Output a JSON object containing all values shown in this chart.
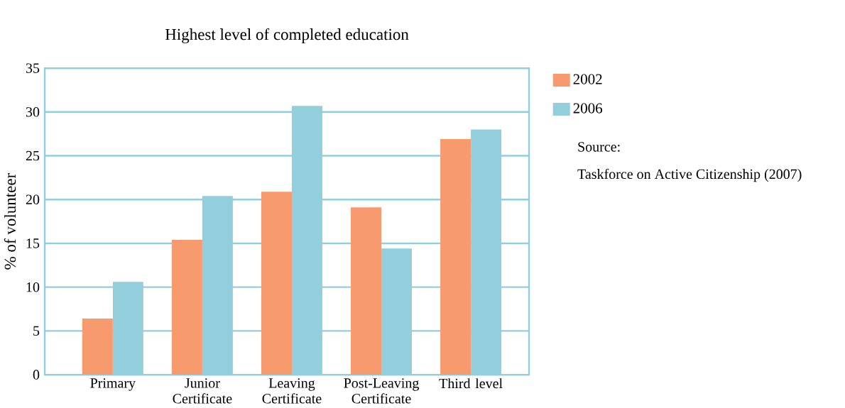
{
  "chart_data": {
    "type": "bar",
    "title": "Highest level of completed education",
    "ylabel": "% of volunteer",
    "categories": [
      "Primary",
      "Junior Certificate",
      "Leaving Certificate",
      "Post-Leaving Certificate",
      "Third level"
    ],
    "series": [
      {
        "name": "2002",
        "color": "#f79a6e",
        "values": [
          6.4,
          15.4,
          20.9,
          19.1,
          26.9
        ]
      },
      {
        "name": "2006",
        "color": "#93cedd",
        "values": [
          10.6,
          20.4,
          30.7,
          14.4,
          28.0
        ]
      }
    ],
    "ylim": [
      0,
      35
    ],
    "yticks": [
      0,
      5,
      10,
      15,
      20,
      25,
      30,
      35
    ],
    "grid": "y",
    "legend": "top right",
    "annotations": [
      "Source:",
      "Taskforce on Active Citizenship (2007)"
    ]
  }
}
